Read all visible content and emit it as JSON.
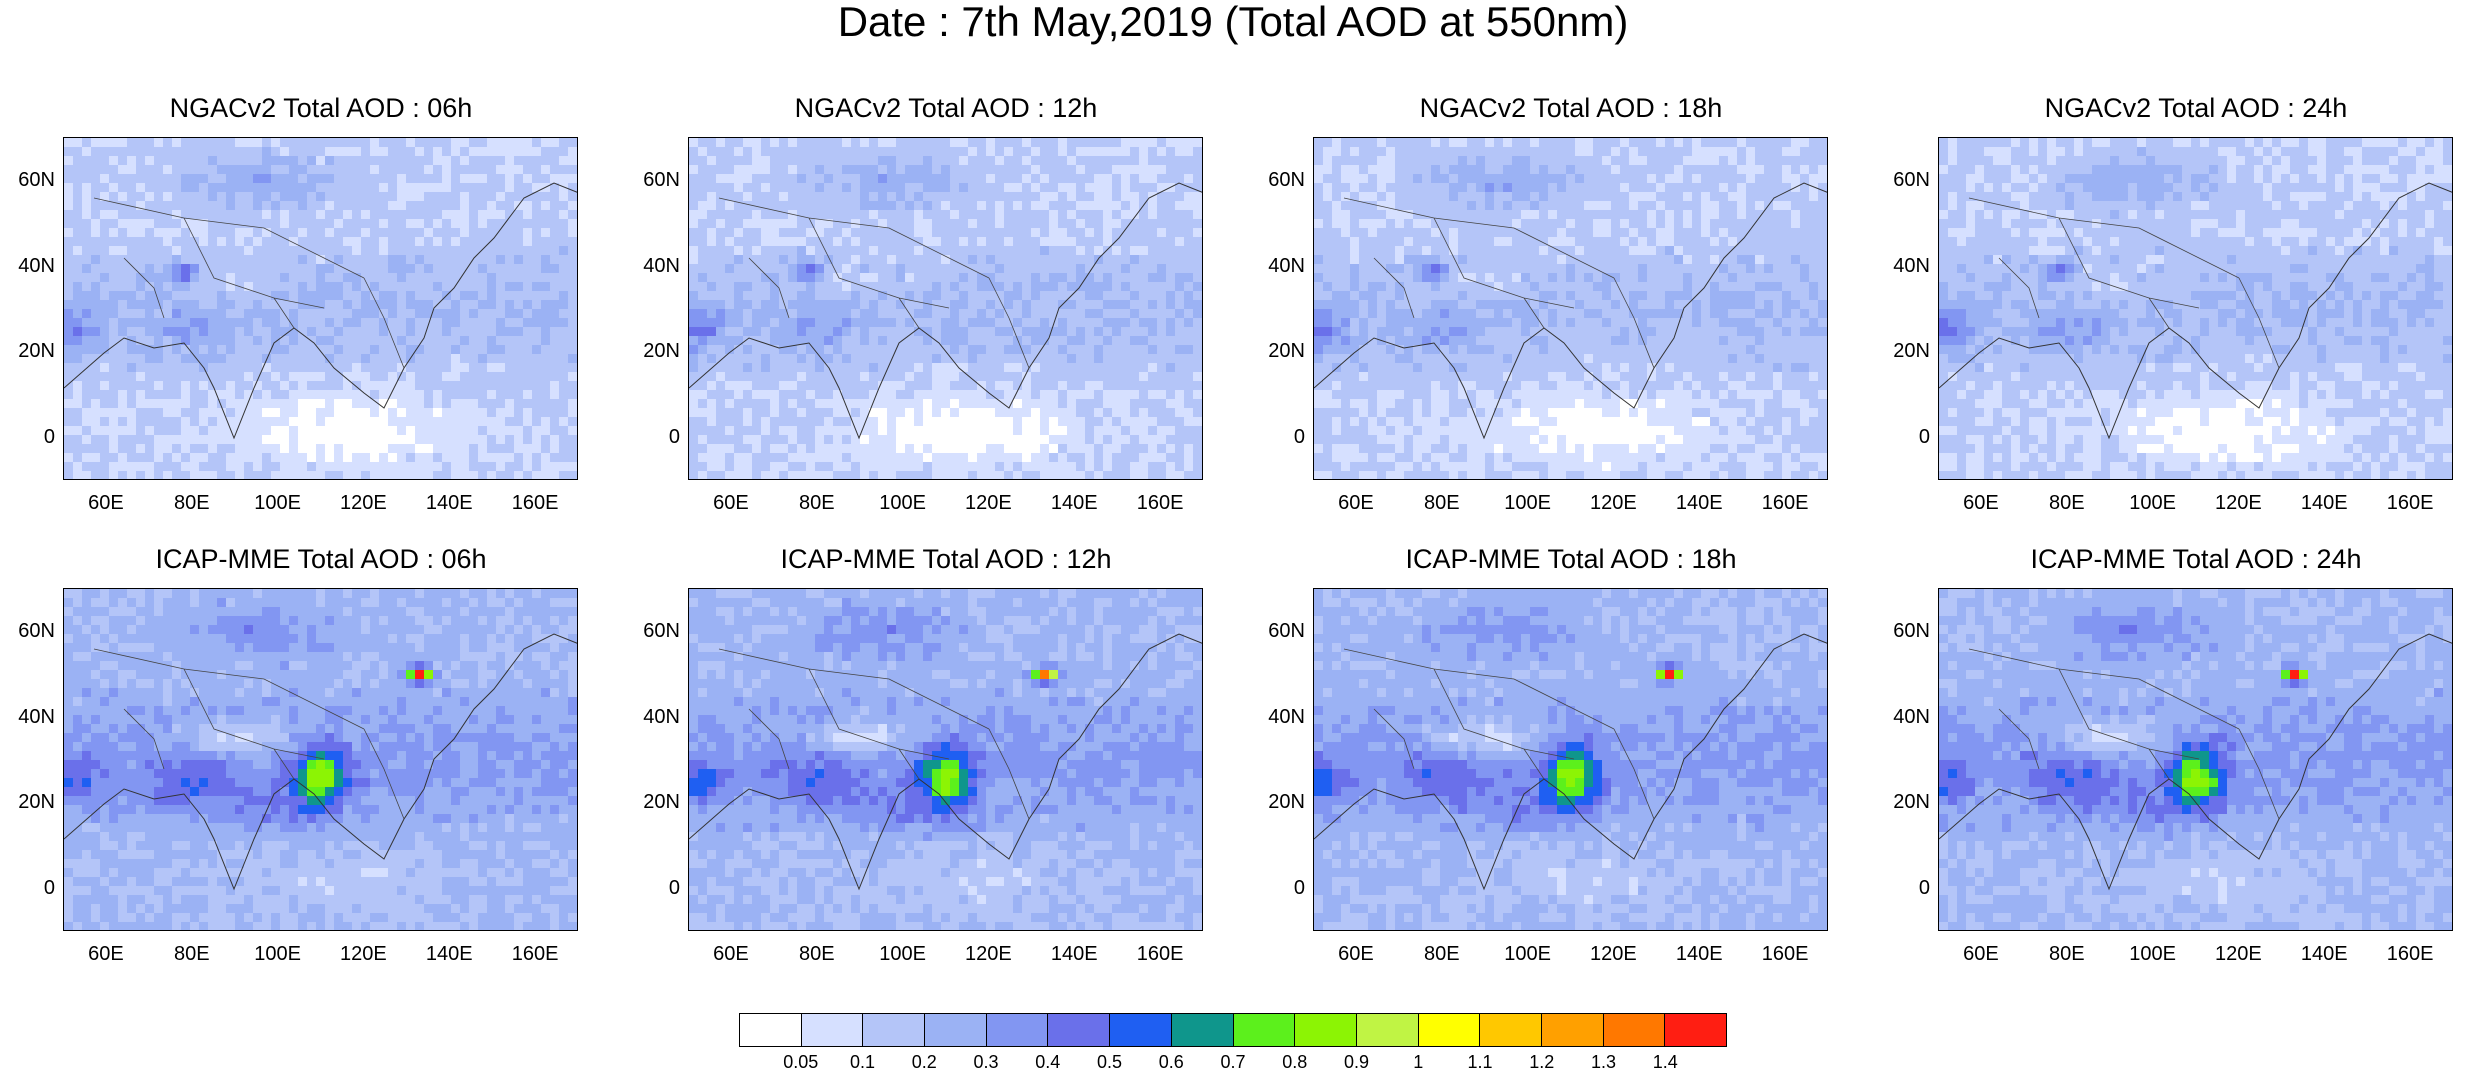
{
  "title": "Date : 7th May,2019 (Total AOD at 550nm)",
  "panels": [
    {
      "title": "NGACv2 Total AOD : 06h",
      "model": "NGACv2",
      "hour": "06h"
    },
    {
      "title": "NGACv2 Total AOD : 12h",
      "model": "NGACv2",
      "hour": "12h"
    },
    {
      "title": "NGACv2 Total AOD : 18h",
      "model": "NGACv2",
      "hour": "18h"
    },
    {
      "title": "NGACv2 Total AOD : 24h",
      "model": "NGACv2",
      "hour": "24h"
    },
    {
      "title": "ICAP-MME Total AOD : 06h",
      "model": "ICAP-MME",
      "hour": "06h"
    },
    {
      "title": "ICAP-MME Total AOD : 12h",
      "model": "ICAP-MME",
      "hour": "12h"
    },
    {
      "title": "ICAP-MME Total AOD : 18h",
      "model": "ICAP-MME",
      "hour": "18h"
    },
    {
      "title": "ICAP-MME Total AOD : 24h",
      "model": "ICAP-MME",
      "hour": "24h"
    }
  ],
  "lat_labels": [
    "60N",
    "40N",
    "20N",
    "0"
  ],
  "lon_labels": [
    "60E",
    "80E",
    "100E",
    "120E",
    "140E",
    "160E"
  ],
  "map_extent": {
    "lon": [
      50,
      170
    ],
    "lat": [
      -10,
      70
    ]
  },
  "colorbar": {
    "labels": [
      "0.05",
      "0.1",
      "0.2",
      "0.3",
      "0.4",
      "0.5",
      "0.6",
      "0.7",
      "0.8",
      "0.9",
      "1",
      "1.1",
      "1.2",
      "1.3",
      "1.4"
    ],
    "colors": [
      "#ffffff",
      "#d6e0ff",
      "#b4c5f8",
      "#9bb2f4",
      "#8296f2",
      "#6a70ea",
      "#1f5ff2",
      "#0f968c",
      "#5cf01c",
      "#8cf404",
      "#c0f444",
      "#ffff00",
      "#ffc800",
      "#ffa000",
      "#ff7800",
      "#ff1e12"
    ]
  }
}
